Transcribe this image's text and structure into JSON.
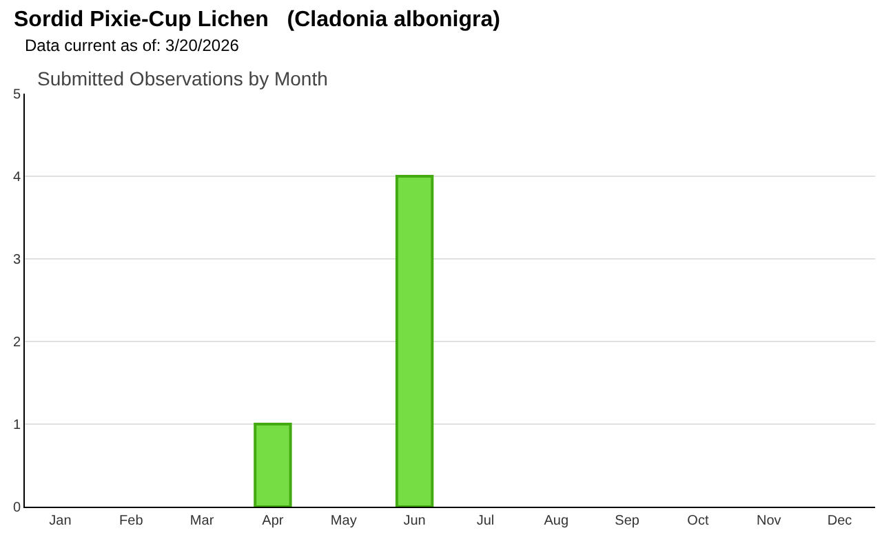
{
  "chart_data": {
    "type": "bar",
    "title": "Sordid Pixie-Cup Lichen   (Cladonia albonigra)",
    "subtitle": "Data current as of: 3/20/2026",
    "annotations": [
      "Submitted Observations by Month"
    ],
    "categories": [
      "Jan",
      "Feb",
      "Mar",
      "Apr",
      "May",
      "Jun",
      "Jul",
      "Aug",
      "Sep",
      "Oct",
      "Nov",
      "Dec"
    ],
    "values": [
      0,
      0,
      0,
      1,
      0,
      4,
      0,
      0,
      0,
      0,
      0,
      0
    ],
    "color": "#77dd44",
    "ylim": [
      0,
      5
    ],
    "yticks": [
      0,
      1,
      2,
      3,
      4,
      5
    ],
    "grid": "y",
    "legend": false
  }
}
